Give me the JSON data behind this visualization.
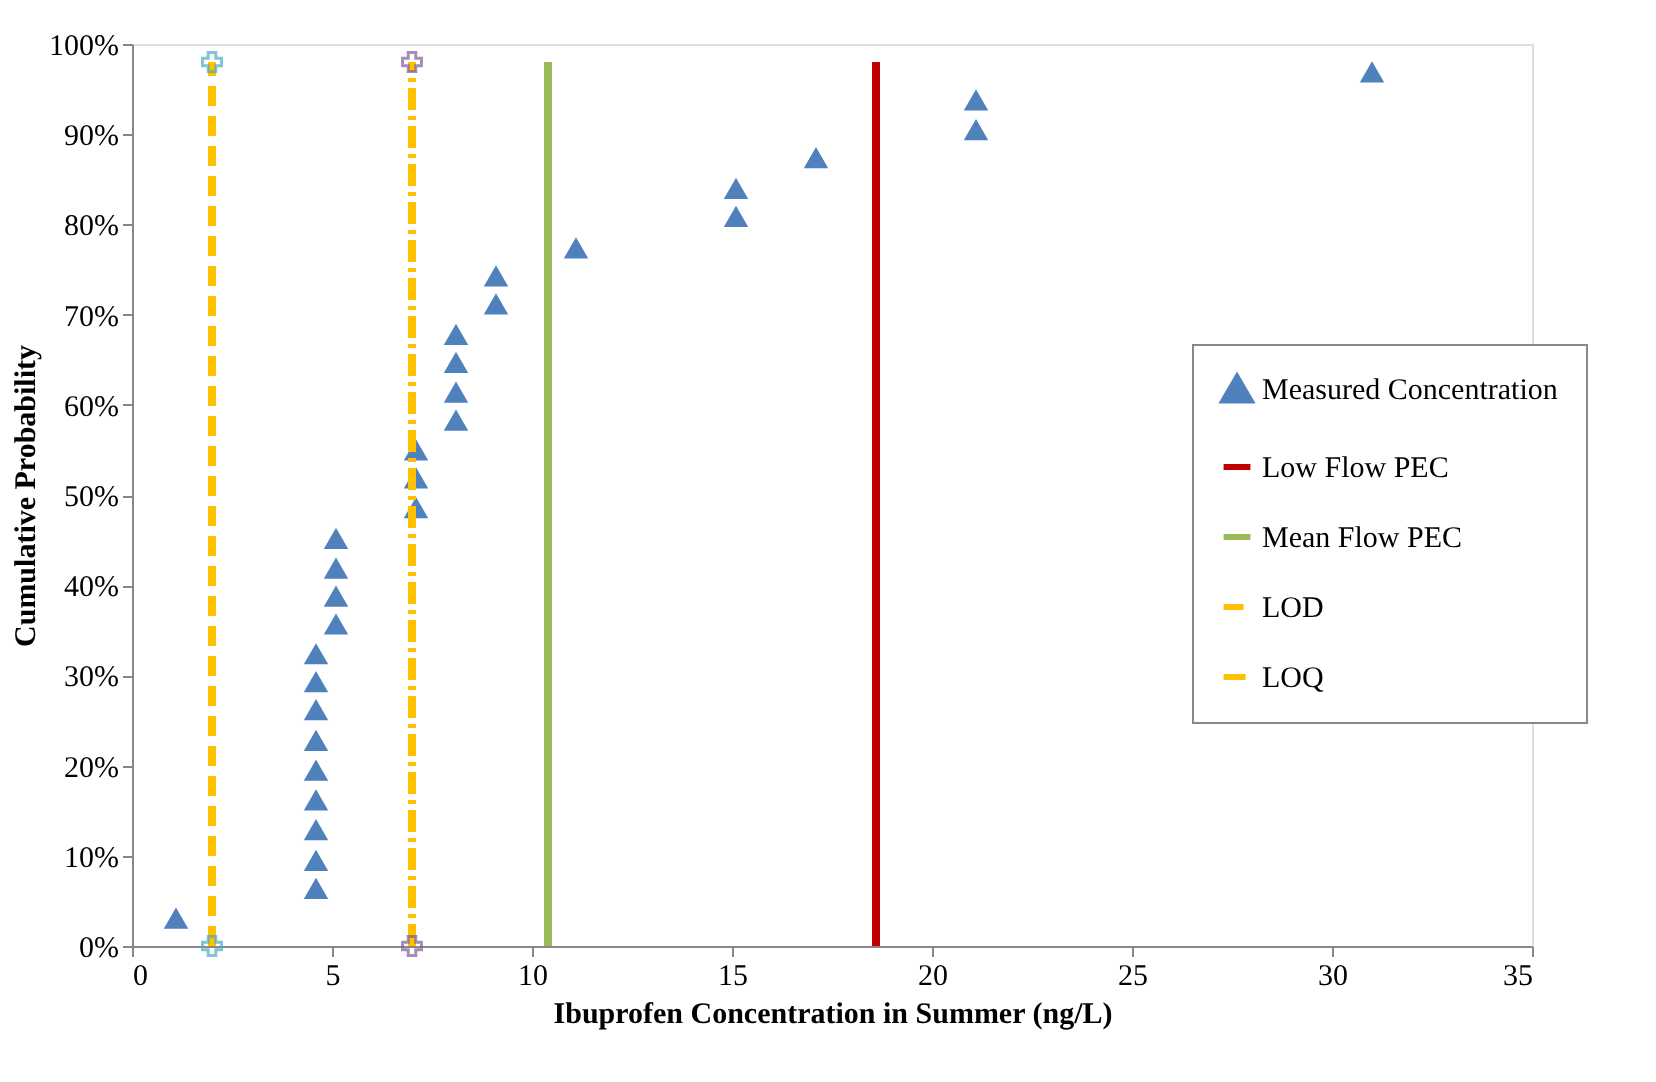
{
  "chart_data": {
    "type": "scatter",
    "xlabel": "Ibuprofen Concentration in Summer (ng/L)",
    "ylabel": "Cumulative Probability",
    "xlim": [
      0,
      35
    ],
    "xticks": [
      0,
      5,
      10,
      15,
      20,
      25,
      30,
      35
    ],
    "ylim": [
      0,
      100
    ],
    "yticks": [
      {
        "value": 0,
        "label": "0%"
      },
      {
        "value": 10,
        "label": "10%"
      },
      {
        "value": 20,
        "label": "20%"
      },
      {
        "value": 30,
        "label": "30%"
      },
      {
        "value": 40,
        "label": "40%"
      },
      {
        "value": 50,
        "label": "50%"
      },
      {
        "value": 60,
        "label": "60%"
      },
      {
        "value": 70,
        "label": "70%"
      },
      {
        "value": 80,
        "label": "80%"
      },
      {
        "value": 90,
        "label": "90%"
      },
      {
        "value": 100,
        "label": "100%"
      }
    ],
    "grid": false,
    "legend": "right",
    "series": [
      {
        "name": "Measured Concentration",
        "marker": "triangle",
        "color": "#4f81bd",
        "x": [
          1.1,
          4.6,
          4.6,
          4.6,
          4.6,
          4.6,
          4.6,
          4.6,
          4.6,
          4.6,
          5.1,
          5.1,
          5.1,
          5.1,
          7.1,
          7.1,
          7.1,
          8.1,
          8.1,
          8.1,
          8.1,
          9.1,
          9.1,
          11.1,
          15.1,
          15.1,
          17.1,
          21.1,
          21.1,
          31.0
        ],
        "values": [
          3.1,
          6.4,
          9.5,
          12.9,
          16.2,
          19.5,
          22.8,
          26.2,
          29.3,
          32.4,
          35.7,
          38.8,
          41.9,
          45.2,
          48.6,
          51.9,
          55.0,
          58.3,
          61.4,
          64.7,
          67.8,
          71.2,
          74.3,
          77.4,
          80.9,
          84.0,
          87.4,
          90.5,
          93.8,
          96.9
        ]
      },
      {
        "name": "Low Flow PEC",
        "type": "line",
        "marker": "none",
        "line_style": "solid",
        "color": "#c00000",
        "x": [
          18.6,
          18.6
        ],
        "values": [
          0,
          98
        ]
      },
      {
        "name": "Mean Flow PEC",
        "type": "line",
        "marker": "none",
        "line_style": "solid",
        "color": "#9bbb59",
        "x": [
          10.4,
          10.4
        ],
        "values": [
          0,
          98
        ]
      },
      {
        "name": "LOD",
        "type": "line",
        "marker": "cross",
        "line_style": "dashed",
        "color": "#ffc000",
        "x": [
          2,
          2
        ],
        "values": [
          0,
          98
        ]
      },
      {
        "name": "LOQ",
        "type": "line",
        "marker": "cross",
        "line_style": "dotted",
        "color": "#ffc000",
        "x": [
          7,
          7
        ],
        "values": [
          0,
          98
        ]
      }
    ]
  }
}
